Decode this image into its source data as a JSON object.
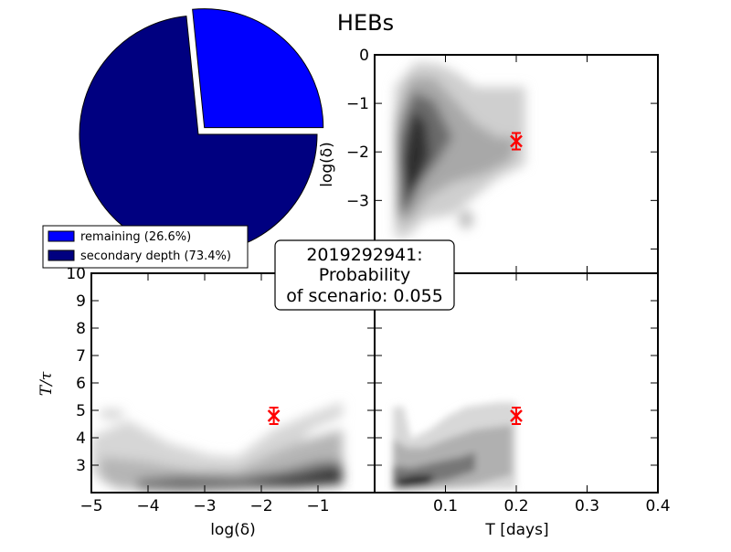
{
  "chart_data": [
    {
      "type": "pie",
      "title": "HEBs",
      "slices": [
        {
          "label": "remaining (26.6%)",
          "value": 26.6,
          "color": "#0000ff",
          "exploded": true
        },
        {
          "label": "secondary depth (73.4%)",
          "value": 73.4,
          "color": "#000080",
          "exploded": false
        }
      ],
      "legend_placement": "lower-left"
    },
    {
      "type": "heatmap",
      "panel": "top-right",
      "xlabel": "",
      "ylabel": "log(δ)",
      "xlim": [
        0,
        0.4
      ],
      "ylim": [
        -4.5,
        0
      ],
      "yticks": [
        "0",
        "−1",
        "−2",
        "−3",
        "−4"
      ],
      "marker": {
        "x": 0.2,
        "y": -1.78,
        "color": "#ff0000"
      }
    },
    {
      "type": "heatmap",
      "panel": "bottom-left",
      "xlabel": "log(δ)",
      "ylabel": "T/τ",
      "xlim": [
        -5,
        0
      ],
      "ylim": [
        2,
        10
      ],
      "xticks": [
        "−5",
        "−4",
        "−3",
        "−2",
        "−1"
      ],
      "yticks": [
        "3",
        "4",
        "5",
        "6",
        "7",
        "8",
        "9",
        "10"
      ],
      "marker": {
        "x": -1.78,
        "y": 4.8,
        "color": "#ff0000"
      }
    },
    {
      "type": "heatmap",
      "panel": "bottom-right",
      "xlabel": "T [days]",
      "ylabel": "",
      "xlim": [
        0,
        0.4
      ],
      "ylim": [
        2,
        10
      ],
      "xticks": [
        "0.1",
        "0.2",
        "0.3",
        "0.4"
      ],
      "marker": {
        "x": 0.2,
        "y": 4.8,
        "color": "#ff0000"
      }
    }
  ],
  "annotation": {
    "line1": "2019292941:",
    "line2": "Probability",
    "line3": "of scenario: 0.055"
  },
  "legend": {
    "items": [
      {
        "label": "remaining (26.6%)",
        "color": "#0000ff"
      },
      {
        "label": "secondary depth (73.4%)",
        "color": "#000080"
      }
    ]
  }
}
